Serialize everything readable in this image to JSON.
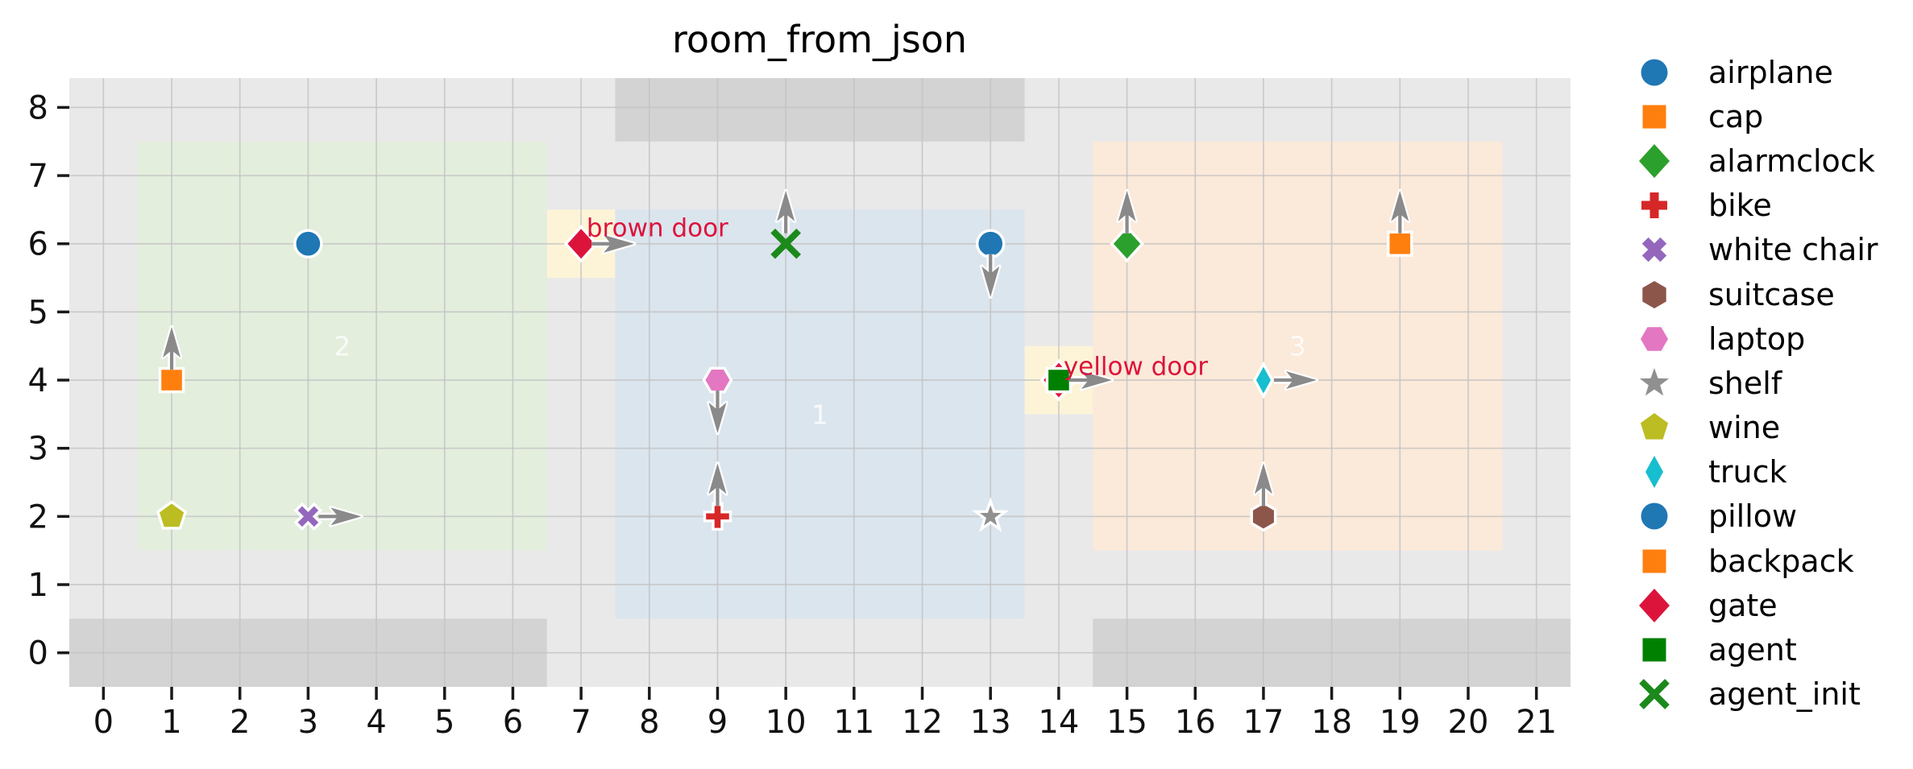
{
  "title": "room_from_json",
  "axes": {
    "xticks": [
      0,
      1,
      2,
      3,
      4,
      5,
      6,
      7,
      8,
      9,
      10,
      11,
      12,
      13,
      14,
      15,
      16,
      17,
      18,
      19,
      20,
      21
    ],
    "yticks": [
      0,
      1,
      2,
      3,
      4,
      5,
      6,
      7,
      8
    ]
  },
  "style": {
    "plot_bg": "#e9e9e9",
    "grid": "#c3c3c3",
    "wall": "#d3d3d3",
    "door_cell": "#fdf4d8",
    "door_marker": "#dc143c",
    "arrow": "#8a8a8a",
    "marker_edge": "#ffffff",
    "door_label_color": "#dc143c",
    "room_label_color": "#ffffff",
    "tick_color": "#111111",
    "title_color": "#000000"
  },
  "chart_data": {
    "type": "scatter",
    "title": "room_from_json",
    "xlabel": "",
    "ylabel": "",
    "xlim": [
      -0.5,
      21.5
    ],
    "ylim": [
      -0.5,
      8.43
    ],
    "grid": true,
    "legend_position": "right",
    "rooms": [
      {
        "label": "2",
        "x0": 0.5,
        "y0": 1.5,
        "x1": 6.5,
        "y1": 7.5,
        "color": "#e3eedd",
        "label_x": 3.5,
        "label_y": 4.5
      },
      {
        "label": "1",
        "x0": 7.5,
        "y0": 0.5,
        "x1": 13.5,
        "y1": 6.5,
        "color": "#dbe5ee",
        "label_x": 10.5,
        "label_y": 3.5
      },
      {
        "label": "3",
        "x0": 14.5,
        "y0": 1.5,
        "x1": 20.5,
        "y1": 7.5,
        "color": "#fbe9d9",
        "label_x": 17.5,
        "label_y": 4.5
      }
    ],
    "walls": [
      {
        "x0": -0.5,
        "y0": -0.5,
        "x1": 6.5,
        "y1": 0.5
      },
      {
        "x0": 14.5,
        "y0": -0.5,
        "x1": 21.5,
        "y1": 0.5
      },
      {
        "x0": 7.5,
        "y0": 7.5,
        "x1": 13.5,
        "y1": 8.43
      }
    ],
    "door_cells": [
      {
        "x0": 6.5,
        "y0": 5.5,
        "x1": 7.5,
        "y1": 6.5
      },
      {
        "x0": 13.5,
        "y0": 3.5,
        "x1": 14.5,
        "y1": 4.5
      }
    ],
    "objects": [
      {
        "name": "airplane",
        "x": 3,
        "y": 6,
        "marker": "circle",
        "color": "#1f77b4",
        "arrow": null
      },
      {
        "name": "cap",
        "x": 1,
        "y": 4,
        "marker": "square",
        "color": "#ff7f0e",
        "arrow": "up"
      },
      {
        "name": "wine",
        "x": 1,
        "y": 2,
        "marker": "pentagon",
        "color": "#bcbd22",
        "arrow": null
      },
      {
        "name": "white chair",
        "x": 3,
        "y": 2,
        "marker": "x-filled",
        "color": "#9467bd",
        "arrow": "right"
      },
      {
        "name": "gate",
        "x": 7,
        "y": 6,
        "marker": "diamond",
        "color": "#dc143c",
        "arrow": "right"
      },
      {
        "name": "agent_init",
        "x": 10,
        "y": 6,
        "marker": "x-stroke",
        "color": "#1b8a1b",
        "arrow": "up"
      },
      {
        "name": "laptop",
        "x": 9,
        "y": 4,
        "marker": "hexagon-flat",
        "color": "#e377c2",
        "arrow": "down"
      },
      {
        "name": "bike",
        "x": 9,
        "y": 2,
        "marker": "plus",
        "color": "#d62728",
        "arrow": "up"
      },
      {
        "name": "pillow",
        "x": 13,
        "y": 6,
        "marker": "circle",
        "color": "#1f77b4",
        "arrow": "down"
      },
      {
        "name": "shelf",
        "x": 13,
        "y": 2,
        "marker": "star",
        "color": "#909090",
        "arrow": null
      },
      {
        "name": "agent",
        "x": 14,
        "y": 4,
        "marker": "square",
        "color": "#008000",
        "arrow": "right",
        "behind": "door-diamond"
      },
      {
        "name": "alarmclock",
        "x": 15,
        "y": 6,
        "marker": "diamond",
        "color": "#2ca02c",
        "arrow": "up"
      },
      {
        "name": "truck",
        "x": 17,
        "y": 4,
        "marker": "thin-diamond",
        "color": "#17becf",
        "arrow": "right"
      },
      {
        "name": "suitcase",
        "x": 17,
        "y": 2,
        "marker": "hexagon-pointy",
        "color": "#8c564b",
        "arrow": "up"
      },
      {
        "name": "backpack",
        "x": 19,
        "y": 6,
        "marker": "square",
        "color": "#ff7f0e",
        "arrow": "up"
      }
    ],
    "annotations": [
      {
        "text": "brown door",
        "x": 7.08,
        "y": 6.11,
        "color": "#dc143c"
      },
      {
        "text": "yellow door",
        "x": 14.07,
        "y": 4.08,
        "color": "#dc143c"
      }
    ]
  },
  "legend": {
    "items": [
      {
        "label": "airplane",
        "marker": "circle",
        "color": "#1f77b4"
      },
      {
        "label": "cap",
        "marker": "square",
        "color": "#ff7f0e"
      },
      {
        "label": "alarmclock",
        "marker": "diamond",
        "color": "#2ca02c"
      },
      {
        "label": "bike",
        "marker": "plus",
        "color": "#d62728"
      },
      {
        "label": "white chair",
        "marker": "x-filled",
        "color": "#9467bd"
      },
      {
        "label": "suitcase",
        "marker": "hexagon-pointy",
        "color": "#8c564b"
      },
      {
        "label": "laptop",
        "marker": "hexagon-flat",
        "color": "#e377c2"
      },
      {
        "label": "shelf",
        "marker": "star",
        "color": "#909090"
      },
      {
        "label": "wine",
        "marker": "pentagon",
        "color": "#bcbd22"
      },
      {
        "label": "truck",
        "marker": "thin-diamond",
        "color": "#17becf"
      },
      {
        "label": "pillow",
        "marker": "circle",
        "color": "#1f77b4"
      },
      {
        "label": "backpack",
        "marker": "square",
        "color": "#ff7f0e"
      },
      {
        "label": "gate",
        "marker": "diamond",
        "color": "#dc143c"
      },
      {
        "label": "agent",
        "marker": "square",
        "color": "#008000"
      },
      {
        "label": "agent_init",
        "marker": "x-stroke",
        "color": "#1b8a1b"
      }
    ]
  }
}
